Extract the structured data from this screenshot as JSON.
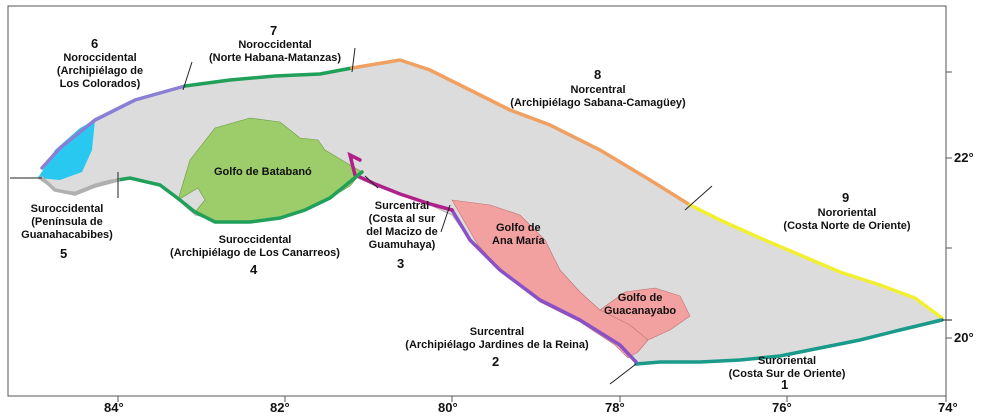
{
  "regions": [
    {
      "number": "6",
      "name": "Noroccidental",
      "desc1": "(Archipiélago de",
      "desc2": "Los Colorados)",
      "color": "#8a7fd6"
    },
    {
      "number": "7",
      "name": "Noroccidental",
      "desc1": "(Norte Habana-Matanzas)",
      "desc2": "",
      "color": "#21a05a"
    },
    {
      "number": "8",
      "name": "Norcentral",
      "desc1": "(Archipiélago Sabana-Camagüey)",
      "desc2": "",
      "color": "#f0a060"
    },
    {
      "number": "9",
      "name": "Nororiental",
      "desc1": "(Costa Norte de Oriente)",
      "desc2": "",
      "color": "#f2ef30"
    },
    {
      "number": "5",
      "name": "Suroccidental",
      "desc1": "(Península de",
      "desc2": "Guanahacabibes)",
      "color": "#b0b0b0"
    },
    {
      "number": "4",
      "name": "Suroccidental",
      "desc1": "(Archipiélago de Los Canarreos)",
      "desc2": "",
      "color": "#21a05a"
    },
    {
      "number": "3",
      "name": "Surcentral",
      "desc1": "(Costa al sur",
      "desc2": "del Macizo de",
      "desc3": "Guamuhaya)",
      "color": "#b0208a"
    },
    {
      "number": "2",
      "name": "Surcentral",
      "desc1": "(Archipiélago Jardines de la Reina)",
      "desc2": "",
      "color": "#8a50c8"
    },
    {
      "number": "1",
      "name": "Suroriental",
      "desc1": "(Costa Sur de Oriente)",
      "desc2": "",
      "color": "#1a9a8a"
    }
  ],
  "gulfs": [
    {
      "line1": "Golfo de Batabanó",
      "line2": "",
      "fill": "#9ccd6a"
    },
    {
      "line1": "Golfo de",
      "line2": "Ana María",
      "fill": "#f2a0a0"
    },
    {
      "line1": "Golfo de",
      "line2": "Guacanayabo",
      "fill": "#f2a0a0"
    }
  ],
  "axes": {
    "x_ticks": [
      "84°",
      "82°",
      "80°",
      "78°",
      "76°",
      "74°"
    ],
    "y_ticks": [
      "22°",
      "20°"
    ]
  },
  "colors": {
    "land": "#dcdcdc",
    "west_tip": "#28c8f0"
  }
}
